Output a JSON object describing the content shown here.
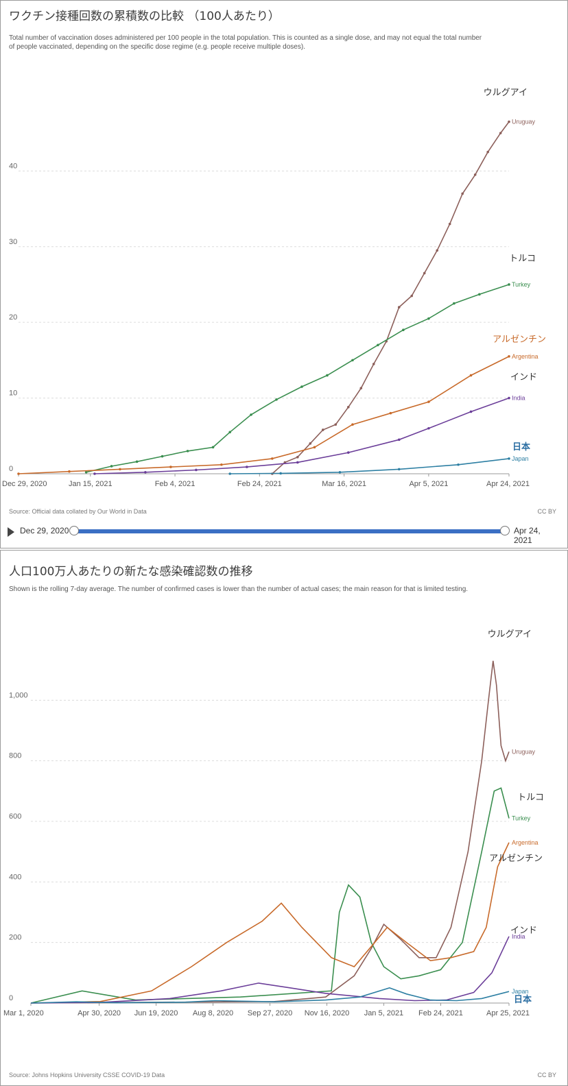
{
  "chart_data": [
    {
      "type": "line",
      "title": "ワクチン接種回数の累積数の比較 （100人あたり）",
      "subtitle": "Total number of vaccination doses administered per 100 people in the total population. This is counted as a single dose, and may not equal the total number of people vaccinated, depending on the specific dose regime (e.g. people receive multiple doses).",
      "ylim": [
        0,
        48
      ],
      "yticks": [
        0,
        10,
        20,
        30,
        40
      ],
      "x_start": "Dec 29, 2020",
      "x_end": "Apr 24, 2021",
      "x_ticks": [
        "Dec 29, 2020",
        "Jan 15, 2021",
        "Feb 4, 2021",
        "Feb 24, 2021",
        "Mar 16, 2021",
        "Apr 5, 2021",
        "Apr 24, 2021"
      ],
      "grid": true,
      "series": [
        {
          "name": "Uruguay",
          "label_ja": "ウルグアイ",
          "color": "#8c5f5a",
          "x": [
            "2021-02-27",
            "2021-03-02",
            "2021-03-05",
            "2021-03-08",
            "2021-03-11",
            "2021-03-14",
            "2021-03-17",
            "2021-03-20",
            "2021-03-23",
            "2021-03-26",
            "2021-03-29",
            "2021-04-01",
            "2021-04-04",
            "2021-04-07",
            "2021-04-10",
            "2021-04-13",
            "2021-04-16",
            "2021-04-19",
            "2021-04-22",
            "2021-04-24"
          ],
          "y": [
            0,
            1.5,
            2.2,
            4.0,
            5.8,
            6.5,
            8.8,
            11.3,
            14.5,
            17.5,
            22.0,
            23.5,
            26.5,
            29.5,
            33.0,
            37.0,
            39.5,
            42.5,
            45.0,
            46.5
          ]
        },
        {
          "name": "Turkey",
          "label_ja": "トルコ",
          "color": "#3a8e4f",
          "x": [
            "2021-01-14",
            "2021-01-20",
            "2021-01-26",
            "2021-02-01",
            "2021-02-07",
            "2021-02-13",
            "2021-02-17",
            "2021-02-22",
            "2021-02-28",
            "2021-03-06",
            "2021-03-12",
            "2021-03-18",
            "2021-03-24",
            "2021-03-30",
            "2021-04-05",
            "2021-04-11",
            "2021-04-17",
            "2021-04-24"
          ],
          "y": [
            0.2,
            1.0,
            1.6,
            2.3,
            3.0,
            3.5,
            5.5,
            7.8,
            9.8,
            11.5,
            13.0,
            15.0,
            17.0,
            19.0,
            20.5,
            22.5,
            23.7,
            25.0
          ]
        },
        {
          "name": "Argentina",
          "label_ja": "アルゼンチン",
          "color": "#c86a2a",
          "x": [
            "2020-12-29",
            "2021-01-10",
            "2021-01-22",
            "2021-02-03",
            "2021-02-15",
            "2021-02-27",
            "2021-03-09",
            "2021-03-18",
            "2021-03-27",
            "2021-04-05",
            "2021-04-15",
            "2021-04-24"
          ],
          "y": [
            0,
            0.3,
            0.6,
            0.9,
            1.2,
            2.0,
            3.5,
            6.5,
            8.0,
            9.5,
            13.0,
            15.5
          ]
        },
        {
          "name": "India",
          "label_ja": "インド",
          "color": "#6b3e99",
          "x": [
            "2021-01-16",
            "2021-01-28",
            "2021-02-09",
            "2021-02-21",
            "2021-03-05",
            "2021-03-17",
            "2021-03-29",
            "2021-04-05",
            "2021-04-15",
            "2021-04-24"
          ],
          "y": [
            0,
            0.2,
            0.5,
            0.9,
            1.5,
            2.8,
            4.5,
            6.0,
            8.2,
            10.0
          ]
        },
        {
          "name": "Japan",
          "label_ja": "日本",
          "color": "#2d7fa3",
          "x": [
            "2021-02-17",
            "2021-03-01",
            "2021-03-15",
            "2021-03-29",
            "2021-04-12",
            "2021-04-24"
          ],
          "y": [
            0,
            0.05,
            0.2,
            0.6,
            1.2,
            2.0
          ]
        }
      ]
    },
    {
      "type": "line",
      "title": "人口100万人あたりの新たな感染確認数の推移",
      "subtitle": "Shown is the rolling 7-day average. The number of confirmed cases is lower than the number of actual cases; the main reason for that is limited testing.",
      "ylim": [
        0,
        1200
      ],
      "yticks": [
        0,
        200,
        400,
        600,
        800,
        1000
      ],
      "ytick_labels": [
        "0",
        "200",
        "400",
        "600",
        "800",
        "1,000"
      ],
      "x_start": "Mar 1, 2020",
      "x_end": "Apr 25, 2021",
      "x_ticks": [
        "Mar 1, 2020",
        "Apr 30, 2020",
        "Jun 19, 2020",
        "Aug 8, 2020",
        "Sep 27, 2020",
        "Nov 16, 2020",
        "Jan 5, 2021",
        "Feb 24, 2021",
        "Apr 25, 2021"
      ],
      "grid": true,
      "series": [
        {
          "name": "Uruguay",
          "label_ja": "ウルグアイ",
          "color": "#8c5f5a",
          "x": [
            "2020-03-01",
            "2020-06-01",
            "2020-10-01",
            "2020-11-15",
            "2020-12-10",
            "2020-12-25",
            "2021-01-05",
            "2021-01-20",
            "2021-02-05",
            "2021-02-20",
            "2021-03-05",
            "2021-03-20",
            "2021-04-01",
            "2021-04-07",
            "2021-04-11",
            "2021-04-14",
            "2021-04-18",
            "2021-04-22",
            "2021-04-25"
          ],
          "y": [
            0,
            2,
            5,
            20,
            90,
            180,
            260,
            210,
            150,
            150,
            250,
            500,
            800,
            1000,
            1130,
            1050,
            850,
            800,
            830
          ]
        },
        {
          "name": "Turkey",
          "label_ja": "トルコ",
          "color": "#3a8e4f",
          "x": [
            "2020-03-01",
            "2020-04-15",
            "2020-06-01",
            "2020-09-01",
            "2020-11-20",
            "2020-11-27",
            "2020-12-05",
            "2020-12-15",
            "2020-12-25",
            "2021-01-05",
            "2021-01-20",
            "2021-02-05",
            "2021-02-24",
            "2021-03-15",
            "2021-04-01",
            "2021-04-12",
            "2021-04-18",
            "2021-04-25"
          ],
          "y": [
            0,
            40,
            10,
            20,
            40,
            300,
            390,
            350,
            200,
            120,
            80,
            90,
            110,
            200,
            500,
            700,
            710,
            610
          ]
        },
        {
          "name": "Argentina",
          "label_ja": "アルゼンチン",
          "color": "#c86a2a",
          "x": [
            "2020-03-01",
            "2020-05-01",
            "2020-06-15",
            "2020-07-20",
            "2020-08-20",
            "2020-09-20",
            "2020-10-07",
            "2020-10-25",
            "2020-11-20",
            "2020-12-10",
            "2020-12-28",
            "2021-01-08",
            "2021-01-25",
            "2021-02-15",
            "2021-03-05",
            "2021-03-25",
            "2021-04-05",
            "2021-04-15",
            "2021-04-25"
          ],
          "y": [
            0,
            5,
            40,
            120,
            200,
            270,
            330,
            250,
            150,
            120,
            200,
            250,
            200,
            140,
            150,
            170,
            250,
            450,
            530
          ]
        },
        {
          "name": "India",
          "label_ja": "インド",
          "color": "#6b3e99",
          "x": [
            "2020-03-01",
            "2020-05-01",
            "2020-07-01",
            "2020-08-15",
            "2020-09-17",
            "2020-10-15",
            "2020-11-15",
            "2021-01-01",
            "2021-02-01",
            "2021-03-01",
            "2021-03-25",
            "2021-04-10",
            "2021-04-25"
          ],
          "y": [
            0,
            2,
            15,
            40,
            66,
            50,
            32,
            15,
            8,
            10,
            35,
            100,
            220
          ]
        },
        {
          "name": "Japan",
          "label_ja": "日本",
          "color": "#2d7fa3",
          "x": [
            "2020-03-01",
            "2020-04-10",
            "2020-05-15",
            "2020-07-15",
            "2020-08-10",
            "2020-10-01",
            "2020-11-15",
            "2020-12-15",
            "2021-01-10",
            "2021-01-25",
            "2021-02-15",
            "2021-03-10",
            "2021-04-01",
            "2021-04-25"
          ],
          "y": [
            0,
            4,
            1,
            3,
            8,
            4,
            10,
            20,
            50,
            30,
            10,
            8,
            15,
            38
          ]
        }
      ]
    }
  ],
  "panel1": {
    "source": "Source: Official data collated by Our World in Data",
    "license": "CC BY",
    "timeline_start": "Dec 29, 2020",
    "timeline_end": "Apr 24, 2021"
  },
  "panel2": {
    "source": "Source: Johns Hopkins University CSSE COVID-19 Data",
    "license": "CC BY"
  }
}
